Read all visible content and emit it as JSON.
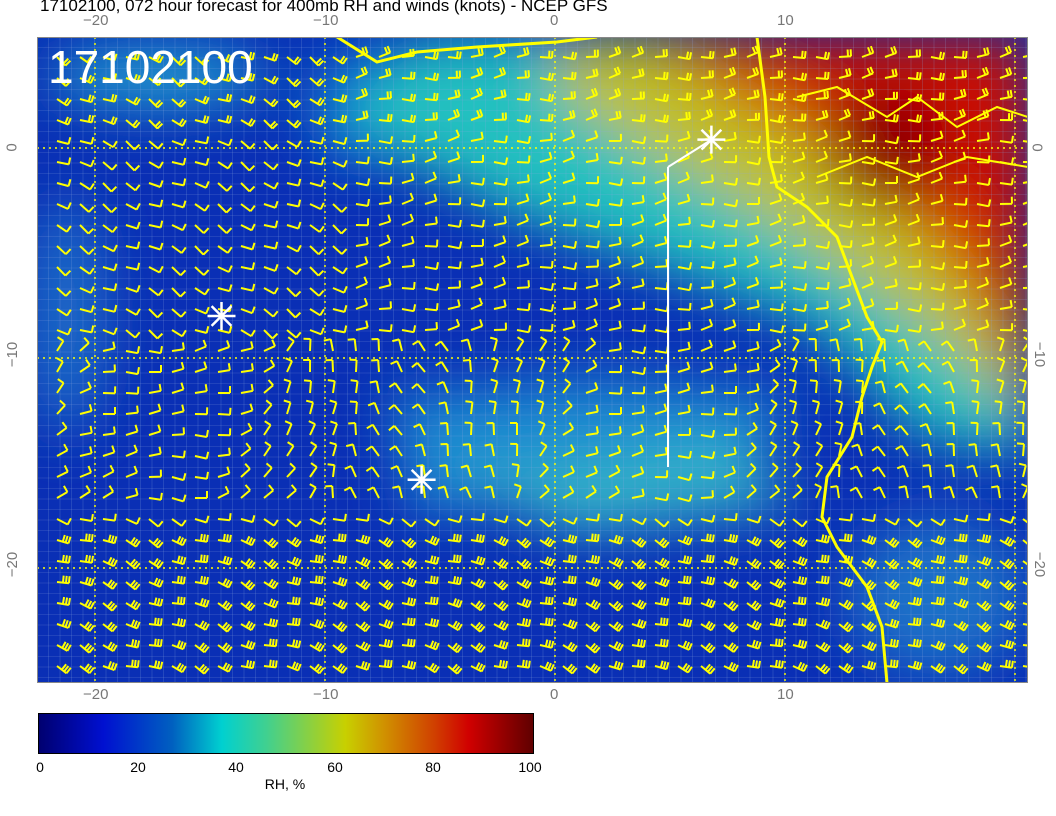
{
  "title": "17102100, 072 hour forecast for 400mb RH and winds (knots) - NCEP GFS",
  "stamp": "17102100",
  "lon_ticks": [
    "−20",
    "−10",
    "0",
    "10"
  ],
  "lat_ticks": [
    "0",
    "−10",
    "−20"
  ],
  "colorbar": {
    "labels": [
      "0",
      "20",
      "40",
      "60",
      "80",
      "100"
    ],
    "unit": "RH, %",
    "range": [
      0,
      100
    ]
  },
  "colors": {
    "barbs": "#ffff00",
    "coast": "#ffff00",
    "low_rh": "#0a2fb5",
    "high_rh": "#d00000"
  },
  "markers": [
    {
      "type": "star",
      "lon": -14.5,
      "lat": -8
    },
    {
      "type": "star",
      "lon": -5.8,
      "lat": -15.8
    },
    {
      "type": "star",
      "lon": 6.8,
      "lat": 0.4
    }
  ]
}
